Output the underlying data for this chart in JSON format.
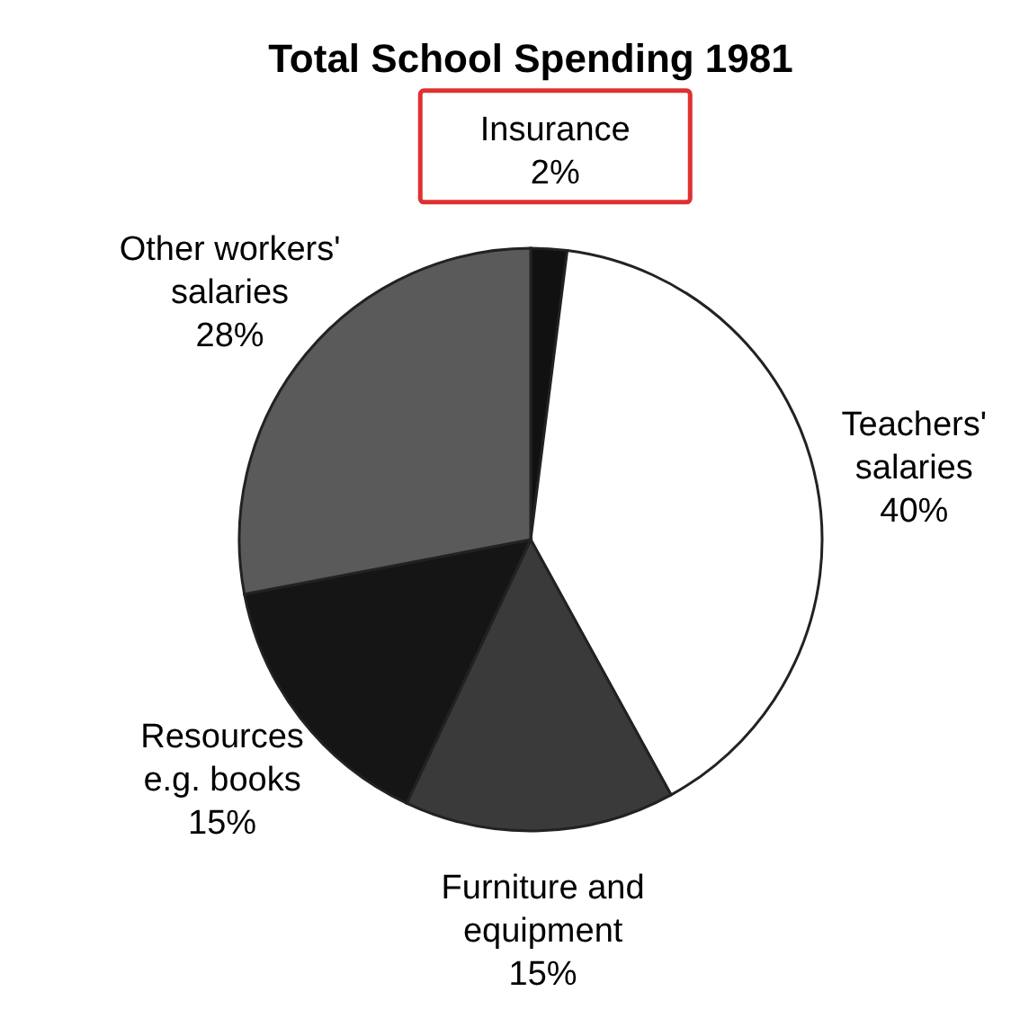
{
  "chart_data": {
    "type": "pie",
    "title": "Total School Spending 1981",
    "categories": [
      "Insurance",
      "Teachers'\nsalaries",
      "Furniture and\nequipment",
      "Resources\ne.g. books",
      "Other workers'\nsalaries"
    ],
    "values": [
      2,
      40,
      15,
      15,
      28
    ],
    "value_labels": [
      "2%",
      "40%",
      "15%",
      "15%",
      "28%"
    ],
    "colors": [
      "#111111",
      "#ffffff",
      "#3a3a3a",
      "#151515",
      "#5a5a5a"
    ]
  }
}
